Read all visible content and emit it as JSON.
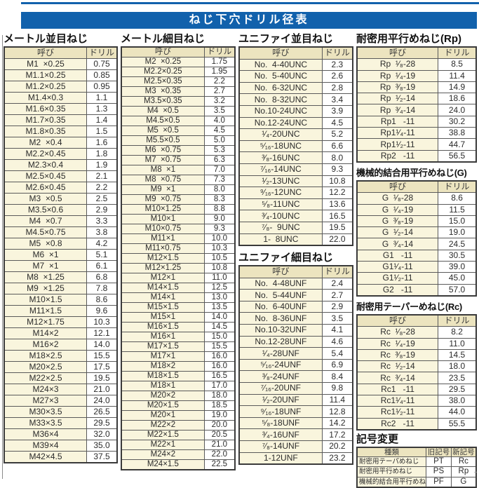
{
  "page_title": "ねじ下穴ドリル径表",
  "column_headers": {
    "name": "呼び",
    "drill": "ドリル"
  },
  "sections": {
    "metric_coarse": {
      "title": "メートル並目ねじ",
      "rows": [
        [
          "M1  ×0.25",
          "0.75"
        ],
        [
          "M1.1×0.25",
          "0.85"
        ],
        [
          "M1.2×0.25",
          "0.95"
        ],
        [
          "M1.4×0.3",
          "1.1"
        ],
        [
          "M1.6×0.35",
          "1.3"
        ],
        [
          "M1.7×0.35",
          "1.4"
        ],
        [
          "M1.8×0.35",
          "1.5"
        ],
        [
          "M2  ×0.4",
          "1.6"
        ],
        [
          "M2.2×0.45",
          "1.8"
        ],
        [
          "M2.3×0.4",
          "1.9"
        ],
        [
          "M2.5×0.45",
          "2.1"
        ],
        [
          "M2.6×0.45",
          "2.2"
        ],
        [
          "M3  ×0.5",
          "2.5"
        ],
        [
          "M3.5×0.6",
          "2.9"
        ],
        [
          "M4  ×0.7",
          "3.3"
        ],
        [
          "M4.5×0.75",
          "3.8"
        ],
        [
          "M5  ×0.8",
          "4.2"
        ],
        [
          "M6  ×1",
          "5.1"
        ],
        [
          "M7  ×1",
          "6.1"
        ],
        [
          "M8  ×1.25",
          "6.8"
        ],
        [
          "M9  ×1.25",
          "7.8"
        ],
        [
          "M10×1.5",
          "8.6"
        ],
        [
          "M11×1.5",
          "9.6"
        ],
        [
          "M12×1.75",
          "10.3"
        ],
        [
          "M14×2",
          "12.1"
        ],
        [
          "M16×2",
          "14.0"
        ],
        [
          "M18×2.5",
          "15.5"
        ],
        [
          "M20×2.5",
          "17.5"
        ],
        [
          "M22×2.5",
          "19.5"
        ],
        [
          "M24×3",
          "21.0"
        ],
        [
          "M27×3",
          "24.0"
        ],
        [
          "M30×3.5",
          "26.5"
        ],
        [
          "M33×3.5",
          "29.5"
        ],
        [
          "M36×4",
          "32.0"
        ],
        [
          "M39×4",
          "35.0"
        ],
        [
          "M42×4.5",
          "37.5"
        ]
      ]
    },
    "metric_fine": {
      "title": "メートル細目ねじ",
      "rows": [
        [
          "M2  ×0.25",
          "1.75"
        ],
        [
          "M2.2×0.25",
          "1.95"
        ],
        [
          "M2.5×0.35",
          "2.2"
        ],
        [
          "M3  ×0.35",
          "2.7"
        ],
        [
          "M3.5×0.35",
          "3.2"
        ],
        [
          "M4  ×0.5",
          "3.5"
        ],
        [
          "M4.5×0.5",
          "4.0"
        ],
        [
          "M5  ×0.5",
          "4.5"
        ],
        [
          "M5.5×0.5",
          "5.0"
        ],
        [
          "M6  ×0.75",
          "5.3"
        ],
        [
          "M7  ×0.75",
          "6.3"
        ],
        [
          "M8  ×1",
          "7.0"
        ],
        [
          "M8  ×0.75",
          "7.3"
        ],
        [
          "M9  ×1",
          "8.0"
        ],
        [
          "M9  ×0.75",
          "8.3"
        ],
        [
          "M10×1.25",
          "8.8"
        ],
        [
          "M10×1",
          "9.0"
        ],
        [
          "M10×0.75",
          "9.3"
        ],
        [
          "M11×1",
          "10.0"
        ],
        [
          "M11×0.75",
          "10.3"
        ],
        [
          "M12×1.5",
          "10.5"
        ],
        [
          "M12×1.25",
          "10.8"
        ],
        [
          "M12×1",
          "11.0"
        ],
        [
          "M14×1.5",
          "12.5"
        ],
        [
          "M14×1",
          "13.0"
        ],
        [
          "M15×1.5",
          "13.5"
        ],
        [
          "M15×1",
          "14.0"
        ],
        [
          "M16×1.5",
          "14.5"
        ],
        [
          "M16×1",
          "15.0"
        ],
        [
          "M17×1.5",
          "15.5"
        ],
        [
          "M17×1",
          "16.0"
        ],
        [
          "M18×2",
          "16.0"
        ],
        [
          "M18×1.5",
          "16.5"
        ],
        [
          "M18×1",
          "17.0"
        ],
        [
          "M20×2",
          "18.0"
        ],
        [
          "M20×1.5",
          "18.5"
        ],
        [
          "M20×1",
          "19.0"
        ],
        [
          "M22×2",
          "20.0"
        ],
        [
          "M22×1.5",
          "20.5"
        ],
        [
          "M22×1",
          "21.0"
        ],
        [
          "M24×2",
          "22.0"
        ],
        [
          "M24×1.5",
          "22.5"
        ]
      ]
    },
    "unified_coarse": {
      "title": "ユニファイ並目ねじ",
      "rows": [
        [
          "No.  4-40UNC",
          "2.3"
        ],
        [
          "No.  5-40UNC",
          "2.6"
        ],
        [
          "No.  6-32UNC",
          "2.8"
        ],
        [
          "No.  8-32UNC",
          "3.4"
        ],
        [
          "No.10-24UNC",
          "3.9"
        ],
        [
          "No.12-24UNC",
          "4.5"
        ],
        [
          "¹⁄₄-20UNC",
          "5.2"
        ],
        [
          "⁵⁄₁₆-18UNC",
          "6.6"
        ],
        [
          "³⁄₈-16UNC",
          "8.0"
        ],
        [
          "⁷⁄₁₆-14UNC",
          "9.3"
        ],
        [
          "¹⁄₂-13UNC",
          "10.8"
        ],
        [
          "⁹⁄₁₆-12UNC",
          "12.2"
        ],
        [
          "⁵⁄₈-11UNC",
          "13.6"
        ],
        [
          "³⁄₄-10UNC",
          "16.5"
        ],
        [
          "⁷⁄₈-  9UNC",
          "19.5"
        ],
        [
          "1-  8UNC",
          "22.0"
        ]
      ]
    },
    "unified_fine": {
      "title": "ユニファイ細目ねじ",
      "rows": [
        [
          "No.  4-48UNF",
          "2.4"
        ],
        [
          "No.  5-44UNF",
          "2.7"
        ],
        [
          "No.  6-40UNF",
          "2.9"
        ],
        [
          "No.  8-36UNF",
          "3.5"
        ],
        [
          "No.10-32UNF",
          "4.1"
        ],
        [
          "No.12-28UNF",
          "4.6"
        ],
        [
          "¹⁄₄-28UNF",
          "5.4"
        ],
        [
          "⁵⁄₁₆-24UNF",
          "6.9"
        ],
        [
          "³⁄₈-24UNF",
          "8.4"
        ],
        [
          "⁷⁄₁₆-20UNF",
          "9.8"
        ],
        [
          "¹⁄₂-20UNF",
          "11.4"
        ],
        [
          "⁹⁄₁₆-18UNF",
          "12.8"
        ],
        [
          "⁵⁄₈-18UNF",
          "14.2"
        ],
        [
          "³⁄₄-16UNF",
          "17.2"
        ],
        [
          "⁷⁄₈-14UNF",
          "20.2"
        ],
        [
          "1-12UNF",
          "23.2"
        ]
      ]
    },
    "rp": {
      "title": "耐密用平行めねじ(Rp)",
      "rows": [
        [
          "Rp  ¹⁄₈-28",
          "8.5"
        ],
        [
          "Rp  ¹⁄₄-19",
          "11.4"
        ],
        [
          "Rp  ³⁄₈-19",
          "14.9"
        ],
        [
          "Rp  ¹⁄₂-14",
          "18.6"
        ],
        [
          "Rp  ³⁄₄-14",
          "24.0"
        ],
        [
          "Rp1   -11",
          "30.2"
        ],
        [
          "Rp1¹⁄₄-11",
          "38.8"
        ],
        [
          "Rp1¹⁄₂-11",
          "44.7"
        ],
        [
          "Rp2   -11",
          "56.5"
        ]
      ]
    },
    "g": {
      "title": "機械的結合用平行めねじ(G)",
      "rows": [
        [
          "G  ¹⁄₈-28",
          "8.6"
        ],
        [
          "G  ¹⁄₄-19",
          "11.5"
        ],
        [
          "G  ³⁄₈-19",
          "15.0"
        ],
        [
          "G  ¹⁄₂-14",
          "19.0"
        ],
        [
          "G  ³⁄₄-14",
          "24.5"
        ],
        [
          "G1   -11",
          "30.5"
        ],
        [
          "G1¹⁄₄-11",
          "39.0"
        ],
        [
          "G1¹⁄₂-11",
          "45.0"
        ],
        [
          "G2   -11",
          "57.0"
        ]
      ]
    },
    "rc": {
      "title": "耐密用テーパーめねじ(Rc)",
      "rows": [
        [
          "Rc  ¹⁄₈-28",
          "8.2"
        ],
        [
          "Rc  ¹⁄₄-19",
          "11.0"
        ],
        [
          "Rc  ³⁄₈-19",
          "14.5"
        ],
        [
          "Rc  ¹⁄₂-14",
          "18.0"
        ],
        [
          "Rc  ³⁄₄-14",
          "23.5"
        ],
        [
          "Rc1   -11",
          "29.5"
        ],
        [
          "Rc1¹⁄₄-11",
          "38.0"
        ],
        [
          "Rc1¹⁄₂-11",
          "44.0"
        ],
        [
          "Rc2   -11",
          "55.5"
        ]
      ]
    },
    "symbol_change": {
      "title": "記号変更",
      "headers": [
        "種類",
        "旧記号",
        "新記号"
      ],
      "rows": [
        [
          "耐密用テーパめねじ",
          "PT",
          "Rc"
        ],
        [
          "耐密用平行めねじ",
          "PS",
          "Rp"
        ],
        [
          "機械的結合用平行めねじ",
          "PF",
          "G"
        ]
      ]
    }
  },
  "corner_mark": "‥",
  "colors": {
    "accent_blue": "#1161ac",
    "table_header_cream": "#ece4bf",
    "name_cell_cream": "#f9f5dd",
    "border_dark": "#3a3a3a"
  }
}
